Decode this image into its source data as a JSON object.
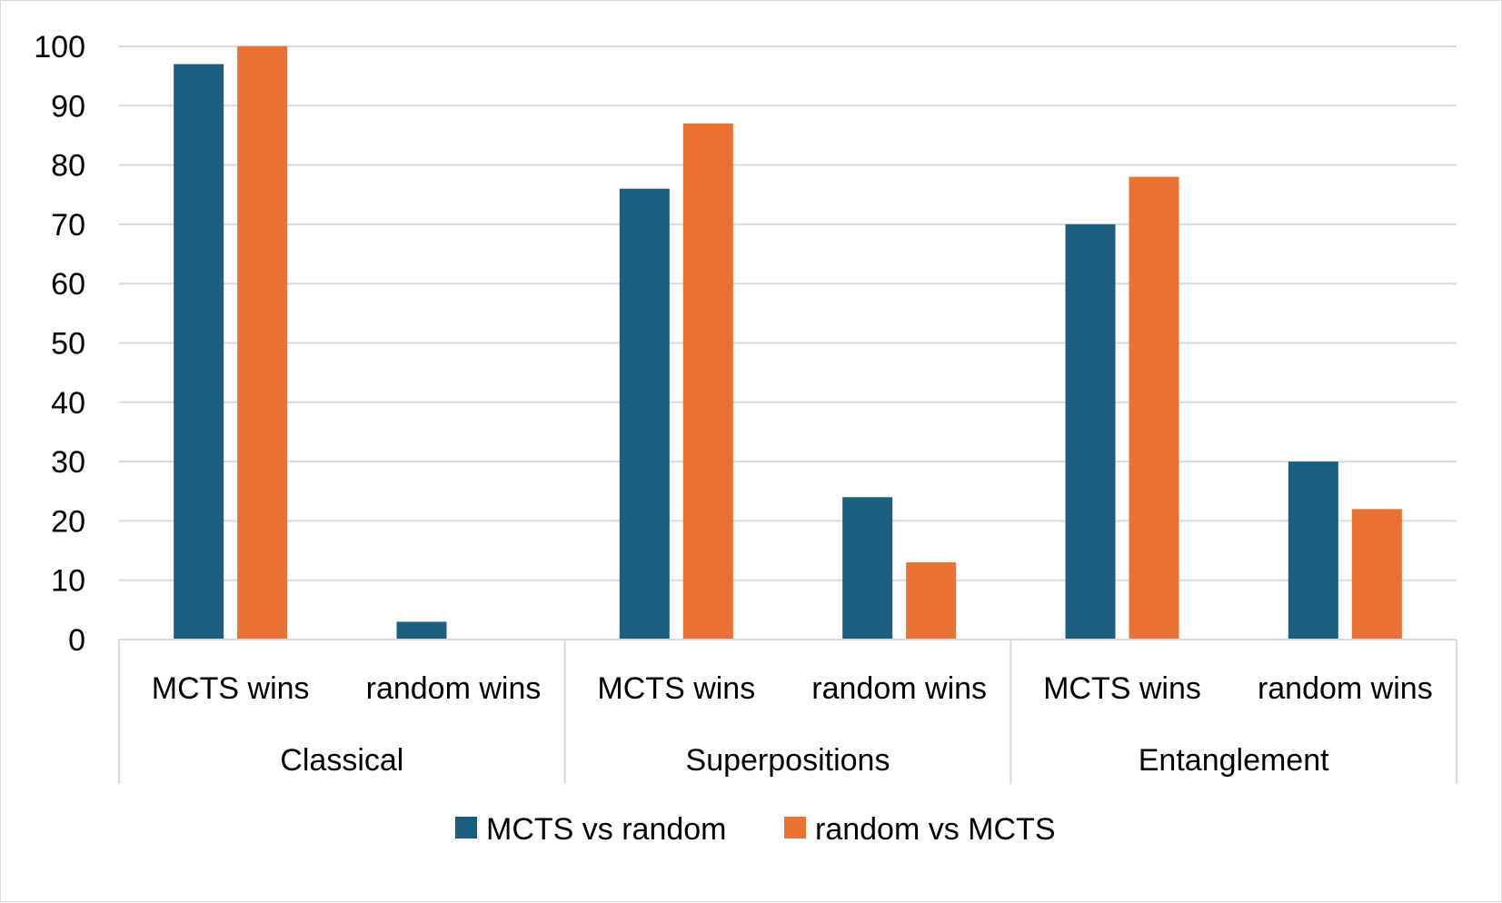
{
  "chart_data": {
    "type": "bar",
    "title": "",
    "xlabel": "",
    "ylabel": "",
    "ylim": [
      0,
      100
    ],
    "yticks": [
      0,
      10,
      20,
      30,
      40,
      50,
      60,
      70,
      80,
      90,
      100
    ],
    "grid": true,
    "legend_position": "bottom",
    "groups": [
      "Classical",
      "Superpositions",
      "Entanglement"
    ],
    "categories": [
      "MCTS wins",
      "random wins",
      "MCTS wins",
      "random wins",
      "MCTS wins",
      "random wins"
    ],
    "series": [
      {
        "name": "MCTS vs random",
        "color": "#1b5e80",
        "values": [
          97,
          3,
          76,
          24,
          70,
          30
        ]
      },
      {
        "name": "random vs MCTS",
        "color": "#e97132",
        "values": [
          100,
          0,
          87,
          13,
          78,
          22
        ]
      }
    ]
  }
}
